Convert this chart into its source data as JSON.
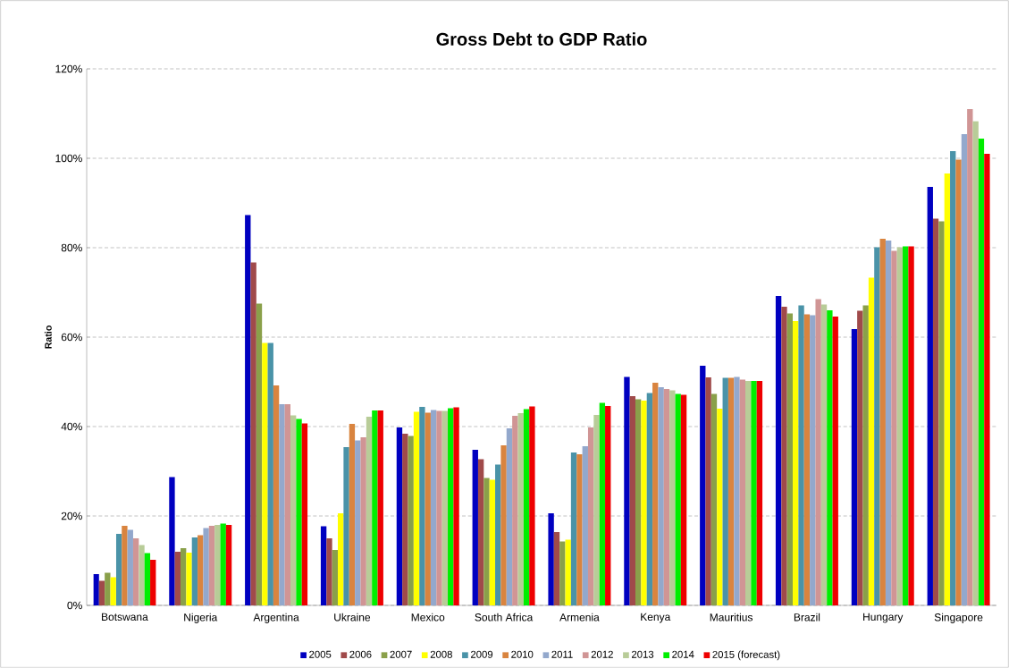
{
  "chart_data": {
    "type": "bar",
    "title": "Gross Debt to GDP Ratio",
    "ylabel": "Ratio",
    "categories": [
      "Botswana",
      "Nigeria",
      "Argentina",
      "Ukraine",
      "Mexico",
      "South Africa",
      "Armenia",
      "Kenya",
      "Mauritius",
      "Brazil",
      "Hungary",
      "Singapore"
    ],
    "series": [
      {
        "name": "2005",
        "color": "#0000c0",
        "values": [
          7,
          28.7,
          87.3,
          17.7,
          39.8,
          34.8,
          20.6,
          51.1,
          53.6,
          69.2,
          61.8,
          93.6
        ]
      },
      {
        "name": "2006",
        "color": "#a04a4a",
        "values": [
          5.5,
          12,
          76.7,
          15,
          38.4,
          32.7,
          16.4,
          46.8,
          51,
          66.8,
          65.9,
          86.5
        ]
      },
      {
        "name": "2007",
        "color": "#8aa04a",
        "values": [
          7.3,
          12.8,
          67.5,
          12.4,
          37.9,
          28.5,
          14.3,
          46.1,
          47.3,
          65.3,
          67.1,
          85.9
        ]
      },
      {
        "name": "2008",
        "color": "#ffff00",
        "values": [
          6.3,
          11.8,
          58.7,
          20.6,
          43.3,
          28.1,
          14.7,
          45.8,
          44,
          63.6,
          73.3,
          96.6
        ]
      },
      {
        "name": "2009",
        "color": "#4a93a8",
        "values": [
          16,
          15.2,
          58.7,
          35.4,
          44.4,
          31.5,
          34.2,
          47.5,
          50.9,
          67.1,
          80.1,
          101.6
        ]
      },
      {
        "name": "2010",
        "color": "#d9843f",
        "values": [
          17.8,
          15.7,
          49.2,
          40.6,
          43.1,
          35.8,
          33.8,
          49.8,
          50.9,
          65.1,
          82,
          99.7
        ]
      },
      {
        "name": "2011",
        "color": "#93a8cc",
        "values": [
          16.9,
          17.3,
          45,
          36.9,
          43.7,
          39.6,
          35.6,
          48.8,
          51.1,
          64.9,
          81.6,
          105.4
        ]
      },
      {
        "name": "2012",
        "color": "#d09595",
        "values": [
          15,
          17.8,
          45,
          37.6,
          43.5,
          42.4,
          39.8,
          48.4,
          50.5,
          68.5,
          79.3,
          111
        ]
      },
      {
        "name": "2013",
        "color": "#b8cc98",
        "values": [
          13.5,
          18,
          42.5,
          42.2,
          43.5,
          43,
          42.6,
          48.1,
          50.2,
          67.3,
          80.1,
          108.3
        ]
      },
      {
        "name": "2014",
        "color": "#00ee00",
        "values": [
          11.7,
          18.3,
          41.7,
          43.6,
          44.1,
          43.9,
          45.3,
          47.3,
          50.2,
          66,
          80.3,
          104.4
        ]
      },
      {
        "name": "2015 (forecast)",
        "color": "#ee0000",
        "values": [
          10.2,
          18,
          40.7,
          43.6,
          44.3,
          44.5,
          44.6,
          47.1,
          50.2,
          64.6,
          80.3,
          101
        ]
      }
    ],
    "ylim": [
      0,
      120
    ],
    "yticks": [
      {
        "value": 0,
        "label": "0%"
      },
      {
        "value": 20,
        "label": "20%"
      },
      {
        "value": 40,
        "label": "40%"
      },
      {
        "value": 60,
        "label": "60%"
      },
      {
        "value": 80,
        "label": "80%"
      },
      {
        "value": 100,
        "label": "100%"
      },
      {
        "value": 120,
        "label": "120%"
      }
    ],
    "grid": "y",
    "legend": "bottom"
  }
}
